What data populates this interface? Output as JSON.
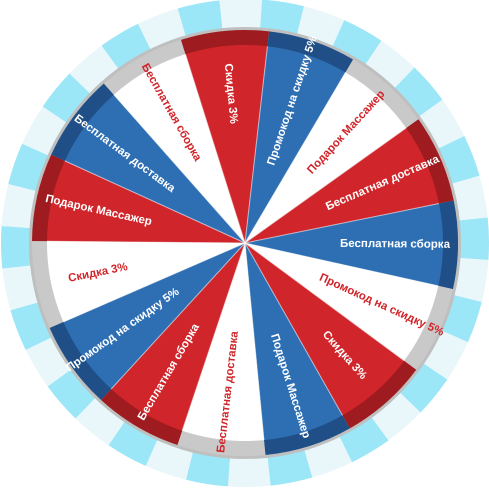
{
  "wheel": {
    "sectors": [
      {
        "label": "Подарок Массажер",
        "color": "red"
      },
      {
        "label": "Бесплатная доставка",
        "color": "blue"
      },
      {
        "label": "Бесплатная сборка",
        "color": "white"
      },
      {
        "label": "Скидка 3%",
        "color": "red"
      },
      {
        "label": "Промокод на скидку 5%",
        "color": "blue"
      },
      {
        "label": "Подарок Массажер",
        "color": "white"
      },
      {
        "label": "Бесплатная доставка",
        "color": "red"
      },
      {
        "label": "Бесплатная сборка",
        "color": "blue"
      },
      {
        "label": "Промокод на скидку 5%",
        "color": "white"
      },
      {
        "label": "Скидка 3%",
        "color": "red"
      },
      {
        "label": "Подарок Массажер",
        "color": "blue"
      },
      {
        "label": "Бесплатная доставка",
        "color": "white"
      },
      {
        "label": "Бесплатная сборка",
        "color": "red"
      },
      {
        "label": "Промокод на скидку 5%",
        "color": "blue"
      },
      {
        "label": "Скидка 3%",
        "color": "white"
      }
    ],
    "colors": {
      "red": "#d0252a",
      "red_rim": "#9e1b1f",
      "blue": "#2e6fb4",
      "blue_rim": "#1f4f86",
      "white": "#ffffff",
      "white_rim": "#c9c9c9",
      "white_text": "#d0252a",
      "stripe_light": "#9be6f7",
      "stripe_pale": "#e9f7fb",
      "ring": "#bfbfbf"
    }
  }
}
